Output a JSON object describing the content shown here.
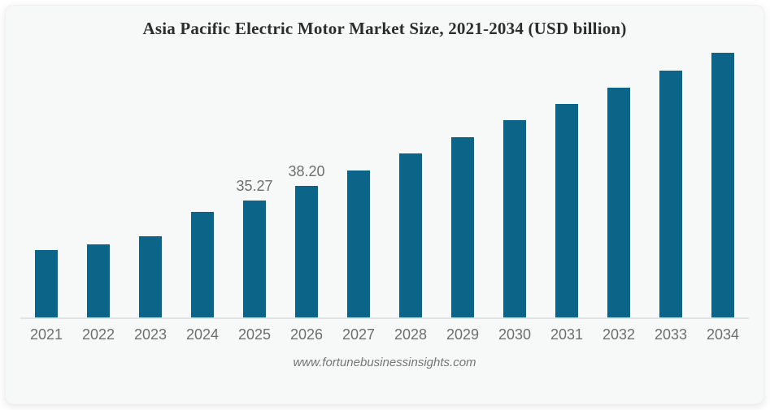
{
  "page": {
    "title": "Asia Pacific Electric Motor Market Size, 2021-2034 (USD billion)",
    "source": "www.fortunebusinessinsights.com"
  },
  "colors": {
    "bar": "#0d6489",
    "card_bg": "#f7f8f8",
    "title_text": "#2d2d2d",
    "axis_label": "#6e6e6e",
    "data_label": "#6e6e6e",
    "axis_line": "#e4e4e4",
    "source_text": "#757575"
  },
  "chart_data": {
    "type": "bar",
    "title": "Asia Pacific Electric Motor Market Size, 2021-2034 (USD billion)",
    "xlabel": "",
    "ylabel": "USD billion",
    "categories": [
      "2021",
      "2022",
      "2023",
      "2024",
      "2025",
      "2026",
      "2027",
      "2028",
      "2029",
      "2030",
      "2031",
      "2032",
      "2033",
      "2034"
    ],
    "values": [
      25.35,
      26.52,
      28.14,
      33.09,
      35.27,
      38.2,
      41.46,
      44.8,
      48.15,
      51.5,
      54.85,
      58.2,
      61.6,
      65.2
    ],
    "data_labels": [
      {
        "category": "2025",
        "text": "35.27"
      },
      {
        "category": "2026",
        "text": "38.20"
      }
    ],
    "legend": "none",
    "grid": false,
    "y_axis_hidden": true,
    "ylim_visual": [
      11.7,
      66
    ]
  }
}
